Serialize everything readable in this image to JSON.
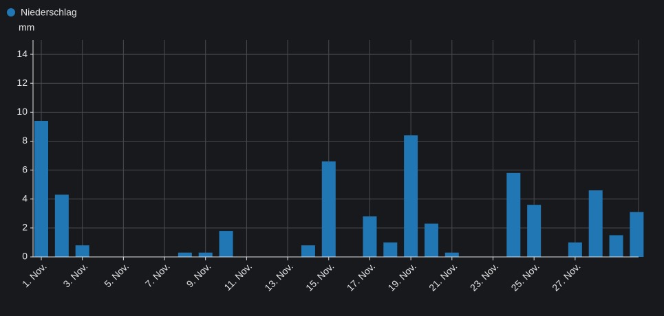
{
  "chart_data": {
    "type": "bar",
    "series": [
      {
        "name": "Niederschlag",
        "color": "#2077b4",
        "values": [
          9.4,
          4.3,
          0.8,
          0,
          0,
          0,
          0,
          0.3,
          0.3,
          1.8,
          0,
          0,
          0,
          0.8,
          6.6,
          0,
          2.8,
          1.0,
          8.4,
          2.3,
          0.3,
          0,
          0,
          5.8,
          3.6,
          0,
          1.0,
          4.6,
          1.5,
          3.1
        ]
      }
    ],
    "categories": [
      "1. Nov.",
      null,
      "3. Nov.",
      null,
      "5. Nov.",
      null,
      "7. Nov.",
      null,
      "9. Nov.",
      null,
      "11. Nov.",
      null,
      "13. Nov.",
      null,
      "15. Nov.",
      null,
      "17. Nov.",
      null,
      "19. Nov.",
      null,
      "21. Nov.",
      null,
      "23. Nov.",
      null,
      "25. Nov.",
      null,
      "27. Nov.",
      null,
      null,
      null
    ],
    "y_label": "mm",
    "ylim": [
      0,
      15
    ],
    "yticks": [
      0,
      2,
      4,
      6,
      8,
      10,
      12,
      14
    ],
    "grid": true
  }
}
